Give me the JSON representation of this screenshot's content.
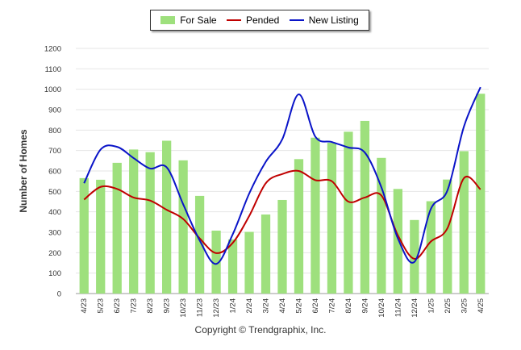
{
  "chart_data": {
    "type": "bar",
    "title": "",
    "xlabel": "",
    "ylabel": "Number of Homes",
    "ylim": [
      0,
      1200
    ],
    "yticks": [
      0,
      100,
      200,
      300,
      400,
      500,
      600,
      700,
      800,
      900,
      1000,
      1100,
      1200
    ],
    "grid": true,
    "legend_position": "top-center",
    "categories": [
      "4/23",
      "5/23",
      "6/23",
      "7/23",
      "8/23",
      "9/23",
      "10/23",
      "11/23",
      "12/23",
      "1/24",
      "2/24",
      "3/24",
      "4/24",
      "5/24",
      "6/24",
      "7/24",
      "8/24",
      "9/24",
      "10/24",
      "11/24",
      "12/24",
      "1/25",
      "2/25",
      "3/25",
      "4/25"
    ],
    "series": [
      {
        "name": "For Sale",
        "kind": "bar",
        "color": "#9ee07d",
        "values": [
          565,
          557,
          640,
          705,
          692,
          748,
          652,
          478,
          308,
          265,
          302,
          387,
          458,
          658,
          763,
          738,
          792,
          845,
          664,
          512,
          360,
          452,
          558,
          697,
          978
        ]
      },
      {
        "name": "Pended",
        "kind": "line",
        "color": "#c00000",
        "values": [
          460,
          522,
          512,
          470,
          455,
          410,
          365,
          270,
          198,
          248,
          380,
          540,
          585,
          600,
          555,
          550,
          450,
          470,
          480,
          285,
          170,
          255,
          320,
          565,
          510
        ]
      },
      {
        "name": "New Listing",
        "kind": "line",
        "color": "#0a14c8",
        "values": [
          540,
          705,
          718,
          663,
          612,
          618,
          437,
          260,
          145,
          290,
          490,
          645,
          755,
          975,
          768,
          742,
          715,
          690,
          520,
          270,
          155,
          415,
          505,
          818,
          1010
        ]
      }
    ],
    "credit": "Copyright © Trendgraphix, Inc."
  }
}
